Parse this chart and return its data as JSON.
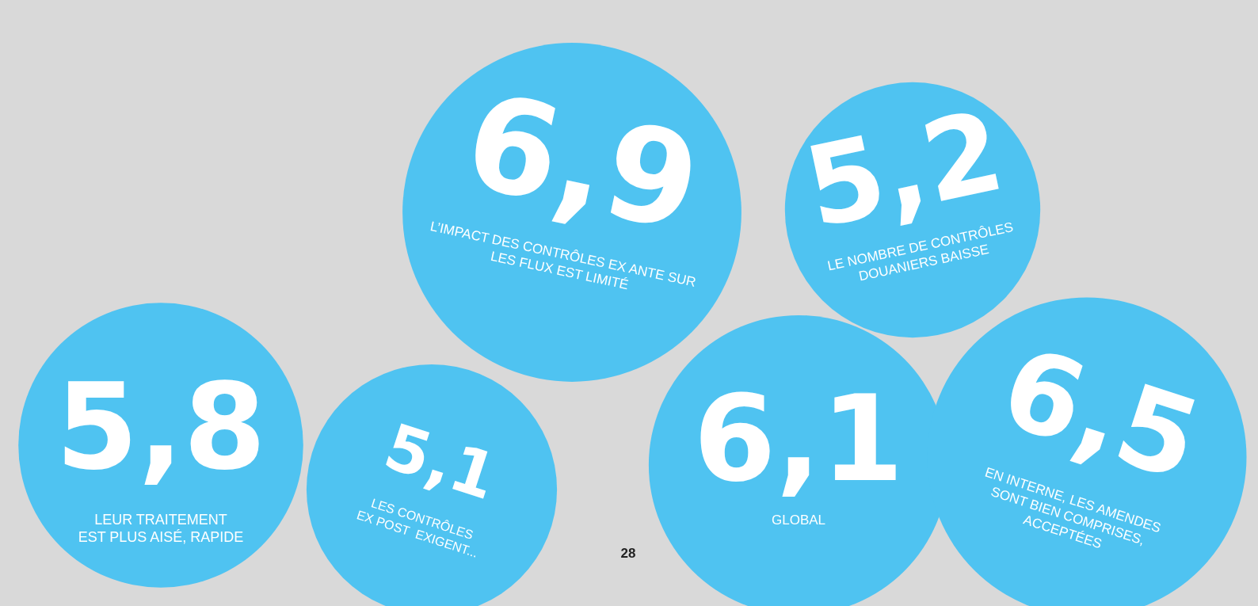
{
  "chart_data": {
    "type": "other",
    "categories": [
      "LEUR TRAITEMENT\nEST PLUS AISÉ, RAPIDE",
      "LES CONTRÔLES\nEX POST  EXIGENT...",
      "L’IMPACT DES CONTRÔLES EX ANTE SUR\nLES FLUX EST LIMITÉ",
      "GLOBAL",
      "LE NOMBRE DE CONTRÔLES\nDOUANIERS BAISSE",
      "EN INTERNE, LES AMENDES\nSONT BIEN COMPRISES,\nACCEPTÉES"
    ],
    "values": [
      5.8,
      5.1,
      6.9,
      6.1,
      5.2,
      6.5
    ],
    "value_labels": [
      "5,8",
      "5,1",
      "6,9",
      "6,1",
      "5,2",
      "6,5"
    ],
    "color": "#4fc3f1",
    "annotations": [
      "28"
    ]
  }
}
